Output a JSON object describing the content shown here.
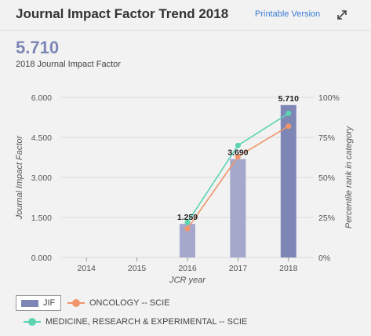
{
  "header": {
    "title": "Journal Impact Factor Trend 2018",
    "print_label": "Printable Version",
    "expand_icon": "expand-arrows-icon"
  },
  "summary": {
    "value": "5.710",
    "label": "2018 Journal Impact Factor"
  },
  "colors": {
    "jif": "#7d86b5",
    "jif_light": "#a4a9cc",
    "oncology": "#f0956a",
    "medicine": "#5dd4b0",
    "grid": "#d9d9d9"
  },
  "chart_data": {
    "type": "bar",
    "categories": [
      "2014",
      "2015",
      "2016",
      "2017",
      "2018"
    ],
    "xlabel": "JCR year",
    "ylabel": "Journal Impact Factor",
    "y2label": "Percentile rank in category",
    "ylim": [
      0,
      6
    ],
    "y_ticks": [
      "0.000",
      "1.500",
      "3.000",
      "4.500",
      "6.000"
    ],
    "y2lim": [
      0,
      100
    ],
    "y2_ticks": [
      "0%",
      "25%",
      "50%",
      "75%",
      "100%"
    ],
    "grid": true,
    "legend_position": "bottom",
    "bar_series": {
      "name": "JIF",
      "values": [
        null,
        null,
        1.259,
        3.69,
        5.71
      ],
      "labels": [
        "",
        "",
        "1.259",
        "3.690",
        "5.710"
      ]
    },
    "line_series": [
      {
        "name": "ONCOLOGY -- SCIE",
        "values": [
          null,
          null,
          18,
          63,
          82
        ]
      },
      {
        "name": "MEDICINE, RESEARCH & EXPERIMENTAL -- SCIE",
        "values": [
          null,
          null,
          22,
          70,
          90
        ]
      }
    ]
  }
}
